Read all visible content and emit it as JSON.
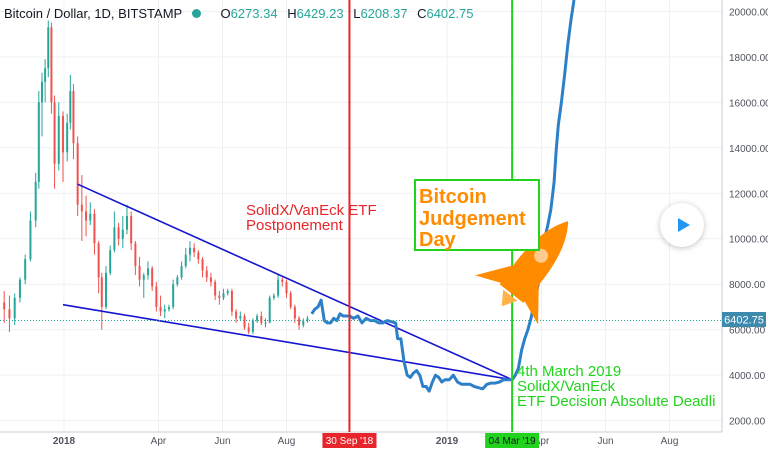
{
  "header": {
    "symbol": "Bitcoin / Dollar, 1D, BITSTAMP",
    "open_label": "O",
    "open": "6273.34",
    "high_label": "H",
    "high": "6429.23",
    "low_label": "L",
    "low": "6208.37",
    "close_label": "C",
    "close": "6402.75"
  },
  "price_tag": "6402.75",
  "colors": {
    "price_line": "#2d80c8",
    "candle_up": "#26a69a",
    "candle_down": "#ef5350",
    "trendline": "#1515d0",
    "postponement_line": "#e8252b",
    "decision_line": "#22d31d",
    "annotation_red": "#e8252b",
    "annotation_green": "#22d31d",
    "judgement_text": "#ff8c00",
    "rocket": "#ff8c00",
    "price_tag_bg": "#3d8aaf"
  },
  "annotations": {
    "postponement": [
      "SolidX/VanEck ETF",
      "Postponement"
    ],
    "judgement": [
      "Bitcoin",
      "Judgement",
      "Day"
    ],
    "decision": [
      "4th March 2019",
      "SolidX/VanEck",
      "ETF Decision Absolute Deadli"
    ]
  },
  "chart_data": {
    "type": "line",
    "ylim": [
      1500,
      20500
    ],
    "y_ticks": [
      2000,
      4000,
      6000,
      8000,
      10000,
      12000,
      14000,
      16000,
      18000,
      20000
    ],
    "y_tick_labels": [
      "2000.00",
      "4000.00",
      "6000.00",
      "8000.00",
      "10000.00",
      "12000.00",
      "14000.00",
      "16000.00",
      "18000.00",
      "20000.00"
    ],
    "xlim": [
      "2017-11-01",
      "2019-09-20"
    ],
    "x_ticks": [
      {
        "date": "2018-01-01",
        "label": "2018"
      },
      {
        "date": "2018-04-01",
        "label": "Apr"
      },
      {
        "date": "2018-06-01",
        "label": "Jun"
      },
      {
        "date": "2018-08-01",
        "label": "Aug"
      },
      {
        "date": "2019-01-01",
        "label": "2019"
      },
      {
        "date": "2019-04-01",
        "label": "Apr"
      },
      {
        "date": "2019-06-01",
        "label": "Jun"
      },
      {
        "date": "2019-08-01",
        "label": "Aug"
      }
    ],
    "highlight_ticks": [
      {
        "date": "2018-09-30",
        "label": "30 Sep '18"
      },
      {
        "date": "2019-03-04",
        "label": "04 Mar '19"
      }
    ],
    "candles": [
      {
        "x": "2017-11-05",
        "o": 7200,
        "h": 7700,
        "l": 6300,
        "c": 6900
      },
      {
        "x": "2017-11-10",
        "o": 6900,
        "h": 7500,
        "l": 5900,
        "c": 6500
      },
      {
        "x": "2017-11-15",
        "o": 6500,
        "h": 7600,
        "l": 6200,
        "c": 7400
      },
      {
        "x": "2017-11-20",
        "o": 7400,
        "h": 8300,
        "l": 7200,
        "c": 8200
      },
      {
        "x": "2017-11-25",
        "o": 8200,
        "h": 9300,
        "l": 8000,
        "c": 9100
      },
      {
        "x": "2017-11-30",
        "o": 9100,
        "h": 11200,
        "l": 9000,
        "c": 10800
      },
      {
        "x": "2017-12-05",
        "o": 10800,
        "h": 12900,
        "l": 10500,
        "c": 12500
      },
      {
        "x": "2017-12-08",
        "o": 12500,
        "h": 16500,
        "l": 12200,
        "c": 16000
      },
      {
        "x": "2017-12-11",
        "o": 16000,
        "h": 17300,
        "l": 14500,
        "c": 16900
      },
      {
        "x": "2017-12-14",
        "o": 16900,
        "h": 17900,
        "l": 16000,
        "c": 17500
      },
      {
        "x": "2017-12-17",
        "o": 17500,
        "h": 19600,
        "l": 17100,
        "c": 19300
      },
      {
        "x": "2017-12-20",
        "o": 19300,
        "h": 19500,
        "l": 15500,
        "c": 16000
      },
      {
        "x": "2017-12-23",
        "o": 16000,
        "h": 16300,
        "l": 12200,
        "c": 13300
      },
      {
        "x": "2017-12-27",
        "o": 13300,
        "h": 16000,
        "l": 13000,
        "c": 15400
      },
      {
        "x": "2017-12-31",
        "o": 15400,
        "h": 15600,
        "l": 12500,
        "c": 13800
      },
      {
        "x": "2018-01-04",
        "o": 13800,
        "h": 15500,
        "l": 13400,
        "c": 15100
      },
      {
        "x": "2018-01-07",
        "o": 15100,
        "h": 17200,
        "l": 14800,
        "c": 16500
      },
      {
        "x": "2018-01-10",
        "o": 16500,
        "h": 16800,
        "l": 13500,
        "c": 14200
      },
      {
        "x": "2018-01-14",
        "o": 14200,
        "h": 14500,
        "l": 11000,
        "c": 11500
      },
      {
        "x": "2018-01-18",
        "o": 11500,
        "h": 12800,
        "l": 9900,
        "c": 11200
      },
      {
        "x": "2018-01-22",
        "o": 11200,
        "h": 11900,
        "l": 10100,
        "c": 10800
      },
      {
        "x": "2018-01-26",
        "o": 10800,
        "h": 11600,
        "l": 10600,
        "c": 11100
      },
      {
        "x": "2018-01-30",
        "o": 11100,
        "h": 11300,
        "l": 9300,
        "c": 9800
      },
      {
        "x": "2018-02-03",
        "o": 9800,
        "h": 9900,
        "l": 7600,
        "c": 8300
      },
      {
        "x": "2018-02-06",
        "o": 8300,
        "h": 8500,
        "l": 6000,
        "c": 7000
      },
      {
        "x": "2018-02-10",
        "o": 7000,
        "h": 8800,
        "l": 6900,
        "c": 8500
      },
      {
        "x": "2018-02-14",
        "o": 8500,
        "h": 9700,
        "l": 8400,
        "c": 9500
      },
      {
        "x": "2018-02-18",
        "o": 9500,
        "h": 11200,
        "l": 9400,
        "c": 10500
      },
      {
        "x": "2018-02-22",
        "o": 10500,
        "h": 10700,
        "l": 9700,
        "c": 10000
      },
      {
        "x": "2018-02-26",
        "o": 10000,
        "h": 11000,
        "l": 9600,
        "c": 10400
      },
      {
        "x": "2018-03-02",
        "o": 10400,
        "h": 11500,
        "l": 10200,
        "c": 11000
      },
      {
        "x": "2018-03-06",
        "o": 11000,
        "h": 11200,
        "l": 9500,
        "c": 9800
      },
      {
        "x": "2018-03-10",
        "o": 9800,
        "h": 9900,
        "l": 8400,
        "c": 8800
      },
      {
        "x": "2018-03-14",
        "o": 8800,
        "h": 9200,
        "l": 7900,
        "c": 8200
      },
      {
        "x": "2018-03-18",
        "o": 8200,
        "h": 8500,
        "l": 7400,
        "c": 8400
      },
      {
        "x": "2018-03-22",
        "o": 8400,
        "h": 9000,
        "l": 8200,
        "c": 8700
      },
      {
        "x": "2018-03-26",
        "o": 8700,
        "h": 8800,
        "l": 7700,
        "c": 7900
      },
      {
        "x": "2018-03-30",
        "o": 7900,
        "h": 8100,
        "l": 6800,
        "c": 7000
      },
      {
        "x": "2018-04-03",
        "o": 7000,
        "h": 7500,
        "l": 6600,
        "c": 6800
      },
      {
        "x": "2018-04-07",
        "o": 6800,
        "h": 7100,
        "l": 6500,
        "c": 6900
      },
      {
        "x": "2018-04-11",
        "o": 6900,
        "h": 7100,
        "l": 6800,
        "c": 7000
      },
      {
        "x": "2018-04-15",
        "o": 7000,
        "h": 8200,
        "l": 6900,
        "c": 8000
      },
      {
        "x": "2018-04-19",
        "o": 8000,
        "h": 8400,
        "l": 7900,
        "c": 8300
      },
      {
        "x": "2018-04-23",
        "o": 8300,
        "h": 9000,
        "l": 8200,
        "c": 8800
      },
      {
        "x": "2018-04-27",
        "o": 8800,
        "h": 9600,
        "l": 8700,
        "c": 9300
      },
      {
        "x": "2018-05-01",
        "o": 9300,
        "h": 9900,
        "l": 9000,
        "c": 9600
      },
      {
        "x": "2018-05-05",
        "o": 9600,
        "h": 9800,
        "l": 9200,
        "c": 9400
      },
      {
        "x": "2018-05-09",
        "o": 9400,
        "h": 9500,
        "l": 8900,
        "c": 9100
      },
      {
        "x": "2018-05-13",
        "o": 9100,
        "h": 9200,
        "l": 8300,
        "c": 8600
      },
      {
        "x": "2018-05-17",
        "o": 8600,
        "h": 8800,
        "l": 8100,
        "c": 8300
      },
      {
        "x": "2018-05-21",
        "o": 8300,
        "h": 8500,
        "l": 7900,
        "c": 8100
      },
      {
        "x": "2018-05-25",
        "o": 8100,
        "h": 8200,
        "l": 7300,
        "c": 7500
      },
      {
        "x": "2018-05-29",
        "o": 7500,
        "h": 7700,
        "l": 7100,
        "c": 7400
      },
      {
        "x": "2018-06-02",
        "o": 7400,
        "h": 7800,
        "l": 7300,
        "c": 7600
      },
      {
        "x": "2018-06-06",
        "o": 7600,
        "h": 7800,
        "l": 7500,
        "c": 7700
      },
      {
        "x": "2018-06-10",
        "o": 7700,
        "h": 7800,
        "l": 6600,
        "c": 6800
      },
      {
        "x": "2018-06-14",
        "o": 6800,
        "h": 6900,
        "l": 6300,
        "c": 6500
      },
      {
        "x": "2018-06-18",
        "o": 6500,
        "h": 6800,
        "l": 6400,
        "c": 6600
      },
      {
        "x": "2018-06-22",
        "o": 6600,
        "h": 6700,
        "l": 6000,
        "c": 6100
      },
      {
        "x": "2018-06-26",
        "o": 6100,
        "h": 6300,
        "l": 5800,
        "c": 5900
      },
      {
        "x": "2018-06-30",
        "o": 5900,
        "h": 6500,
        "l": 5800,
        "c": 6400
      },
      {
        "x": "2018-07-04",
        "o": 6400,
        "h": 6700,
        "l": 6300,
        "c": 6600
      },
      {
        "x": "2018-07-08",
        "o": 6600,
        "h": 6800,
        "l": 6200,
        "c": 6300
      },
      {
        "x": "2018-07-12",
        "o": 6300,
        "h": 6500,
        "l": 6100,
        "c": 6300
      },
      {
        "x": "2018-07-16",
        "o": 6300,
        "h": 7500,
        "l": 6300,
        "c": 7400
      },
      {
        "x": "2018-07-20",
        "o": 7400,
        "h": 7600,
        "l": 7300,
        "c": 7500
      },
      {
        "x": "2018-07-24",
        "o": 7500,
        "h": 8400,
        "l": 7400,
        "c": 8200
      },
      {
        "x": "2018-07-28",
        "o": 8200,
        "h": 8300,
        "l": 7900,
        "c": 8100
      },
      {
        "x": "2018-08-01",
        "o": 8100,
        "h": 8200,
        "l": 7400,
        "c": 7600
      },
      {
        "x": "2018-08-05",
        "o": 7600,
        "h": 7700,
        "l": 6900,
        "c": 7000
      },
      {
        "x": "2018-08-09",
        "o": 7000,
        "h": 7100,
        "l": 6300,
        "c": 6500
      },
      {
        "x": "2018-08-13",
        "o": 6500,
        "h": 6600,
        "l": 6000,
        "c": 6200
      },
      {
        "x": "2018-08-17",
        "o": 6200,
        "h": 6500,
        "l": 6100,
        "c": 6400
      },
      {
        "x": "2018-08-21",
        "o": 6400,
        "h": 6600,
        "l": 6300,
        "c": 6500
      }
    ],
    "series": [
      {
        "x": [
          "2018-08-25",
          "2018-08-28",
          "2018-08-31",
          "2018-09-03",
          "2018-09-06",
          "2018-09-09",
          "2018-09-12",
          "2018-09-15",
          "2018-09-18",
          "2018-09-21",
          "2018-09-24",
          "2018-09-27",
          "2018-09-30",
          "2018-10-04",
          "2018-10-08",
          "2018-10-12",
          "2018-10-16",
          "2018-10-20",
          "2018-10-24",
          "2018-10-28",
          "2018-11-01",
          "2018-11-05",
          "2018-11-09",
          "2018-11-13",
          "2018-11-15",
          "2018-11-18",
          "2018-11-21",
          "2018-11-24",
          "2018-11-27",
          "2018-11-30",
          "2018-12-03",
          "2018-12-06",
          "2018-12-09",
          "2018-12-12",
          "2018-12-15",
          "2018-12-18",
          "2018-12-21",
          "2018-12-24",
          "2018-12-27",
          "2018-12-30",
          "2019-01-03",
          "2019-01-07",
          "2019-01-11",
          "2019-01-15",
          "2019-01-19",
          "2019-01-23",
          "2019-01-27",
          "2019-01-31",
          "2019-02-04",
          "2019-02-08",
          "2019-02-12",
          "2019-02-16",
          "2019-02-20",
          "2019-02-24",
          "2019-02-28",
          "2019-03-04",
          "2019-03-07",
          "2019-03-10",
          "2019-03-13",
          "2019-03-16",
          "2019-03-19",
          "2019-03-22",
          "2019-03-25",
          "2019-03-28",
          "2019-03-31",
          "2019-04-02",
          "2019-04-04",
          "2019-04-07",
          "2019-04-10",
          "2019-04-13",
          "2019-04-15",
          "2019-04-17",
          "2019-04-20",
          "2019-04-23",
          "2019-04-26",
          "2019-04-29",
          "2019-05-02"
        ],
        "values": [
          6700,
          6900,
          7000,
          7300,
          6400,
          6300,
          6300,
          6500,
          6400,
          6700,
          6600,
          6600,
          6600,
          6500,
          6600,
          6300,
          6500,
          6400,
          6400,
          6300,
          6300,
          6400,
          6350,
          6300,
          5600,
          5600,
          4600,
          4000,
          3900,
          4100,
          4200,
          4000,
          3500,
          3500,
          3300,
          3700,
          4000,
          3900,
          3700,
          3800,
          3800,
          4000,
          3700,
          3600,
          3600,
          3600,
          3500,
          3450,
          3400,
          3600,
          3650,
          3650,
          3700,
          3800,
          3800,
          3800,
          4000,
          4300,
          5100,
          5600,
          6000,
          6500,
          7200,
          7800,
          8500,
          9200,
          10000,
          10600,
          11300,
          12500,
          13900,
          15000,
          16000,
          17200,
          18500,
          19600,
          20500
        ]
      }
    ],
    "trendlines": [
      {
        "from": {
          "x": "2018-01-14",
          "y": 12400
        },
        "to": {
          "x": "2019-03-04",
          "y": 3800
        }
      },
      {
        "from": {
          "x": "2017-12-31",
          "y": 7100
        },
        "to": {
          "x": "2019-03-04",
          "y": 3800
        }
      }
    ],
    "vertical_lines": [
      "2018-09-30",
      "2019-03-04"
    ],
    "current_price": 6402.75,
    "grid": true,
    "y_axis_position": "right"
  }
}
